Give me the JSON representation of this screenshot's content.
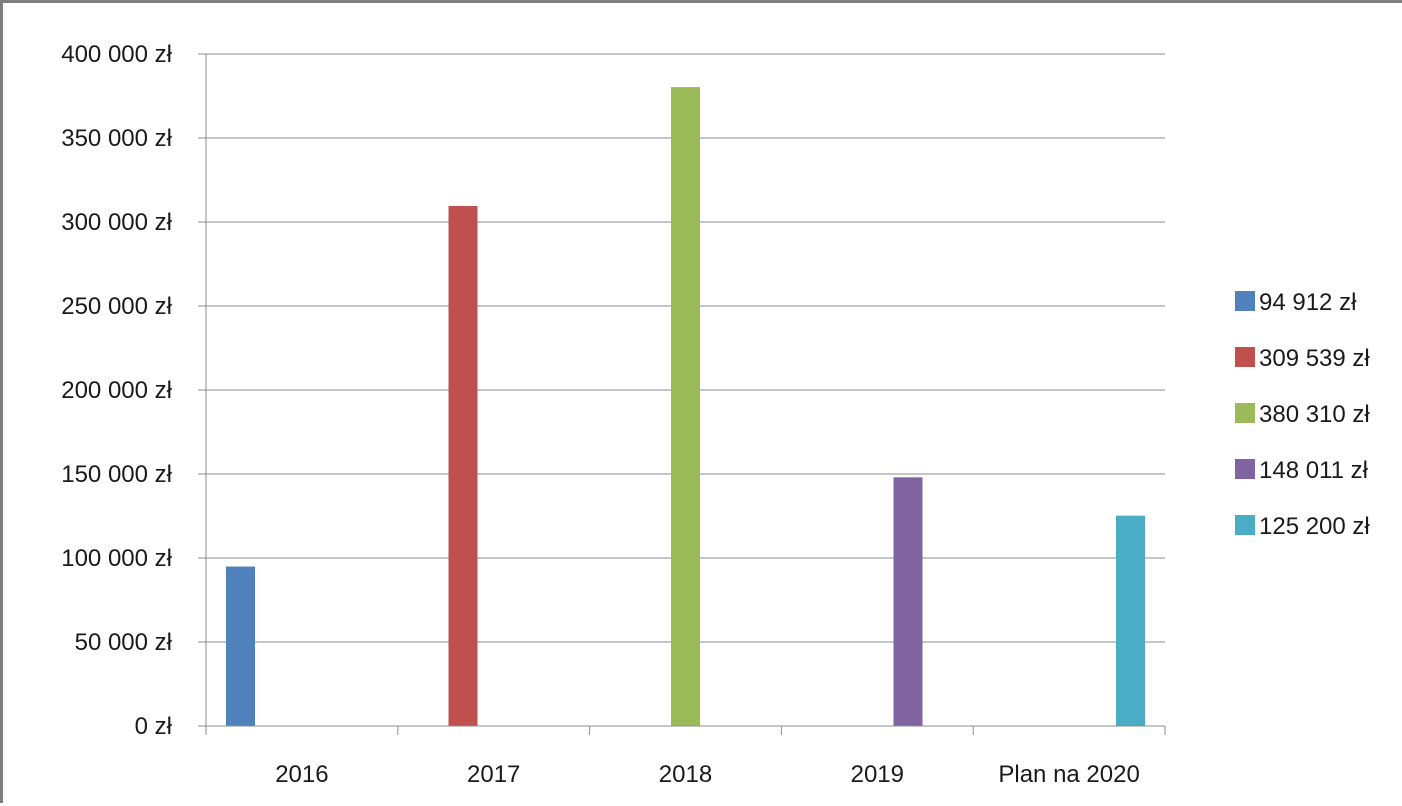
{
  "chart_data": {
    "type": "bar",
    "categories": [
      "2016",
      "2017",
      "2018",
      "2019",
      "Plan na 2020"
    ],
    "series": [
      {
        "name": "94 912 zł",
        "color": "#4F81BD",
        "values": [
          94912,
          null,
          null,
          null,
          null
        ]
      },
      {
        "name": "309 539 zł",
        "color": "#C0504D",
        "values": [
          null,
          309539,
          null,
          null,
          null
        ]
      },
      {
        "name": "380 310 zł",
        "color": "#9BBB59",
        "values": [
          null,
          null,
          380310,
          null,
          null
        ]
      },
      {
        "name": "148 011 zł",
        "color": "#8064A2",
        "values": [
          null,
          null,
          null,
          148011,
          null
        ]
      },
      {
        "name": "125 200 zł",
        "color": "#4BACC6",
        "values": [
          null,
          null,
          null,
          null,
          125200
        ]
      }
    ],
    "ylim": [
      0,
      400000
    ],
    "y_ticks": [
      0,
      50000,
      100000,
      150000,
      200000,
      250000,
      300000,
      350000,
      400000
    ],
    "y_tick_labels": [
      "0 zł",
      "50 000 zł",
      "100 000 zł",
      "150 000 zł",
      "200 000 zł",
      "250 000 zł",
      "300 000 zł",
      "350 000 zł",
      "400 000 zł"
    ],
    "title": "",
    "xlabel": "",
    "ylabel": "",
    "grid": "horizontal",
    "legend_position": "right"
  }
}
